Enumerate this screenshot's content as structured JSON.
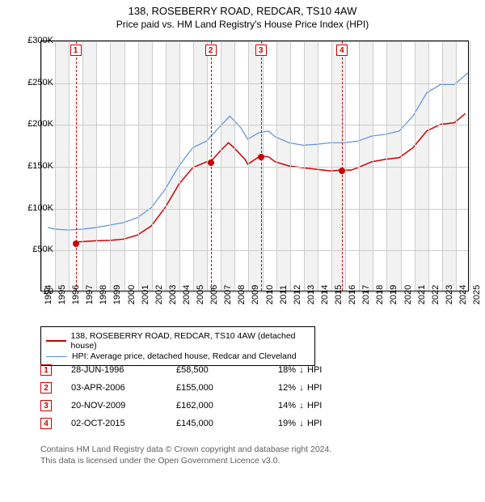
{
  "title_line1": "138, ROSEBERRY ROAD, REDCAR, TS10 4AW",
  "title_line2": "Price paid vs. HM Land Registry's House Price Index (HPI)",
  "chart": {
    "type": "line",
    "plot_bg": "#ffffff",
    "grid_color": "#cccccc",
    "band_color": "#f2f2f2",
    "ylim": [
      0,
      300000
    ],
    "ytick_step": 50000,
    "yticks": [
      "£0",
      "£50K",
      "£100K",
      "£150K",
      "£200K",
      "£250K",
      "£300K"
    ],
    "xlim": [
      1994,
      2025
    ],
    "xticks": [
      1994,
      1995,
      1996,
      1997,
      1998,
      1999,
      2000,
      2001,
      2002,
      2003,
      2004,
      2005,
      2006,
      2007,
      2008,
      2009,
      2010,
      2011,
      2012,
      2013,
      2014,
      2015,
      2016,
      2017,
      2018,
      2019,
      2020,
      2021,
      2022,
      2023,
      2024,
      2025
    ],
    "series": [
      {
        "name": "138, ROSEBERRY ROAD, REDCAR, TS10 4AW (detached house)",
        "color": "#cc0000",
        "width": 1.5,
        "data": [
          [
            1996.5,
            58500
          ],
          [
            1997,
            59000
          ],
          [
            1998,
            60000
          ],
          [
            1999,
            60500
          ],
          [
            2000,
            62000
          ],
          [
            2001,
            67000
          ],
          [
            2002,
            78000
          ],
          [
            2003,
            100000
          ],
          [
            2004,
            128000
          ],
          [
            2005,
            148000
          ],
          [
            2006,
            155000
          ],
          [
            2006.3,
            155000
          ],
          [
            2007,
            168000
          ],
          [
            2007.6,
            178000
          ],
          [
            2008,
            172000
          ],
          [
            2008.8,
            158000
          ],
          [
            2009,
            152000
          ],
          [
            2009.9,
            162000
          ],
          [
            2010.5,
            161000
          ],
          [
            2011,
            155000
          ],
          [
            2012,
            150000
          ],
          [
            2013,
            148000
          ],
          [
            2014,
            146000
          ],
          [
            2015,
            144000
          ],
          [
            2015.8,
            145000
          ],
          [
            2016.5,
            145000
          ],
          [
            2017,
            148000
          ],
          [
            2018,
            155000
          ],
          [
            2019,
            158000
          ],
          [
            2020,
            160000
          ],
          [
            2021,
            172000
          ],
          [
            2022,
            192000
          ],
          [
            2023,
            200000
          ],
          [
            2024,
            202000
          ],
          [
            2024.8,
            213000
          ]
        ]
      },
      {
        "name": "HPI: Average price, detached house, Redcar and Cleveland",
        "color": "#5b8fd6",
        "width": 1.2,
        "data": [
          [
            1994.5,
            76000
          ],
          [
            1995,
            74000
          ],
          [
            1996,
            73000
          ],
          [
            1997,
            74000
          ],
          [
            1998,
            76000
          ],
          [
            1999,
            79000
          ],
          [
            2000,
            82000
          ],
          [
            2001,
            88000
          ],
          [
            2002,
            100000
          ],
          [
            2003,
            122000
          ],
          [
            2004,
            150000
          ],
          [
            2005,
            172000
          ],
          [
            2006,
            180000
          ],
          [
            2007,
            198000
          ],
          [
            2007.7,
            210000
          ],
          [
            2008.5,
            196000
          ],
          [
            2009,
            182000
          ],
          [
            2009.8,
            190000
          ],
          [
            2010.5,
            192000
          ],
          [
            2011,
            185000
          ],
          [
            2012,
            178000
          ],
          [
            2013,
            175000
          ],
          [
            2014,
            176000
          ],
          [
            2015,
            178000
          ],
          [
            2016,
            178000
          ],
          [
            2017,
            180000
          ],
          [
            2018,
            186000
          ],
          [
            2019,
            188000
          ],
          [
            2020,
            192000
          ],
          [
            2021,
            210000
          ],
          [
            2022,
            238000
          ],
          [
            2023,
            248000
          ],
          [
            2024,
            248000
          ],
          [
            2025,
            262000
          ]
        ]
      }
    ],
    "markers": [
      {
        "num": "1",
        "year": 1996.49,
        "price": 58500
      },
      {
        "num": "2",
        "year": 2006.26,
        "price": 155000
      },
      {
        "num": "3",
        "year": 2009.89,
        "price": 162000
      },
      {
        "num": "4",
        "year": 2015.75,
        "price": 145000
      }
    ]
  },
  "legend": [
    {
      "color": "#cc0000",
      "width": 2,
      "label": "138, ROSEBERRY ROAD, REDCAR, TS10 4AW (detached house)"
    },
    {
      "color": "#5b8fd6",
      "width": 1.2,
      "label": "HPI: Average price, detached house, Redcar and Cleveland"
    }
  ],
  "sales": [
    {
      "num": "1",
      "date": "28-JUN-1996",
      "price": "£58,500",
      "pct": "18%",
      "arrow": "↓",
      "hpi": "HPI"
    },
    {
      "num": "2",
      "date": "03-APR-2006",
      "price": "£155,000",
      "pct": "12%",
      "arrow": "↓",
      "hpi": "HPI"
    },
    {
      "num": "3",
      "date": "20-NOV-2009",
      "price": "£162,000",
      "pct": "14%",
      "arrow": "↓",
      "hpi": "HPI"
    },
    {
      "num": "4",
      "date": "02-OCT-2015",
      "price": "£145,000",
      "pct": "19%",
      "arrow": "↓",
      "hpi": "HPI"
    }
  ],
  "footer_line1": "Contains HM Land Registry data © Crown copyright and database right 2024.",
  "footer_line2": "This data is licensed under the Open Government Licence v3.0."
}
